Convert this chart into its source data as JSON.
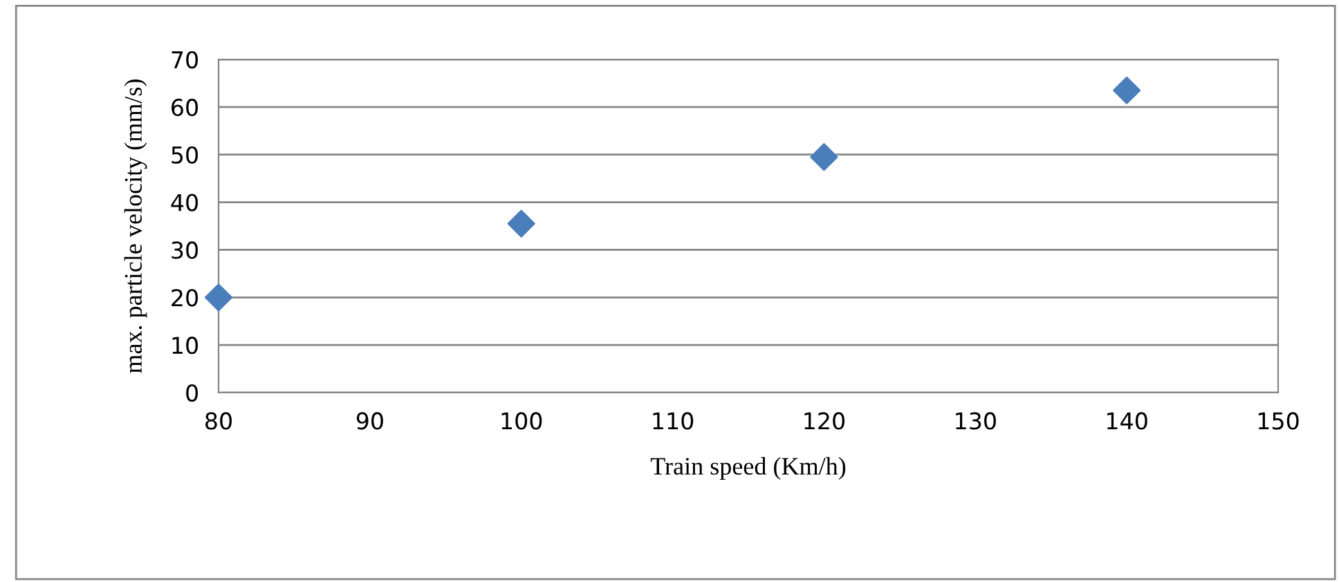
{
  "chart_data": {
    "type": "scatter",
    "xlabel": "Train speed (Km/h)",
    "ylabel": "max. particle velocity (mm/s)",
    "x": [
      80,
      100,
      120,
      140
    ],
    "series": [
      {
        "color": "#4a7ebb",
        "values": [
          20,
          35.5,
          49.5,
          63.5
        ]
      }
    ],
    "marker": "diamond",
    "xlim": [
      80,
      150
    ],
    "xticks": [
      80,
      90,
      100,
      110,
      120,
      130,
      140,
      150
    ],
    "ylim": [
      0,
      70
    ],
    "yticks": [
      0,
      10,
      20,
      30,
      40,
      50,
      60,
      70
    ],
    "grid": "y",
    "legend": false
  }
}
